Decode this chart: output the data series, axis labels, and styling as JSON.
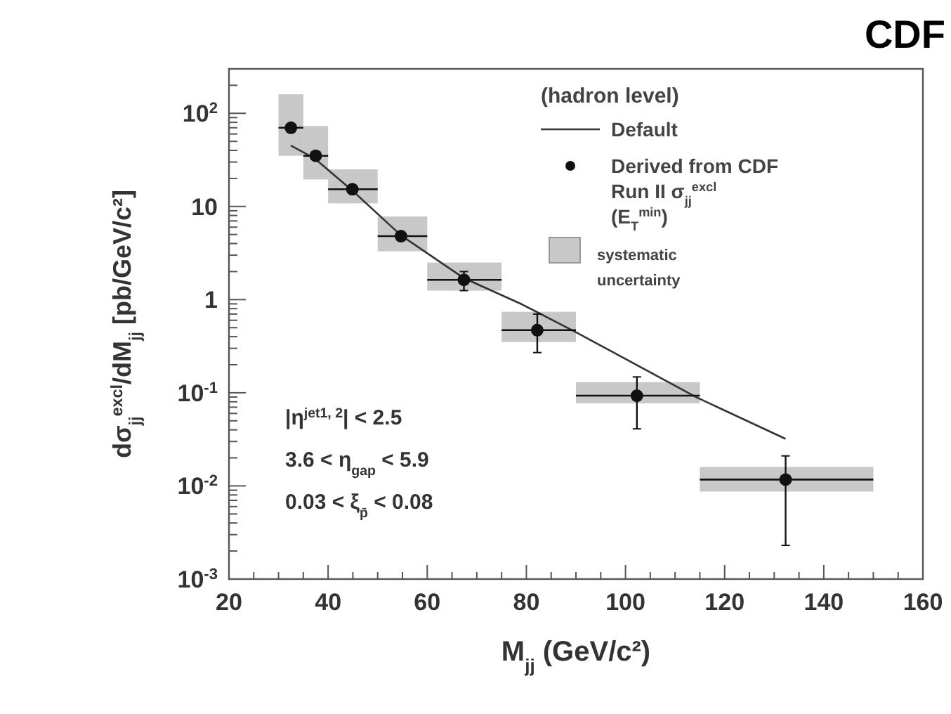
{
  "chart_data": {
    "type": "scatter",
    "title": "CDF",
    "xlabel": "M$_{jj}$ (GeV/c²)",
    "ylabel": "dσ$_{jj}$$^{excl}$/dM$_{jj}$ [pb/GeV/c²]",
    "legend_title": "(hadron level)",
    "annotations": [
      "|η$^{jet1, 2}$| < 2.5",
      "3.6 < η$_{gap}$ < 5.9",
      "0.03 < ξ$_{p̄}$ < 0.08"
    ],
    "log": "y",
    "grid": false,
    "legend": "top right",
    "xlim": [
      20,
      160
    ],
    "ylim": [
      0.001,
      300
    ],
    "xticks": [
      20,
      {
        "value": 25,
        "label": null
      },
      {
        "value": 30,
        "label": null
      },
      {
        "value": 35,
        "label": null
      },
      40,
      {
        "value": 45,
        "label": null
      },
      {
        "value": 50,
        "label": null
      },
      {
        "value": 55,
        "label": null
      },
      60,
      {
        "value": 65,
        "label": null
      },
      {
        "value": 70,
        "label": null
      },
      {
        "value": 75,
        "label": null
      },
      80,
      {
        "value": 85,
        "label": null
      },
      {
        "value": 90,
        "label": null
      },
      {
        "value": 95,
        "label": null
      },
      100,
      {
        "value": 105,
        "label": null
      },
      {
        "value": 110,
        "label": null
      },
      {
        "value": 115,
        "label": null
      },
      120,
      {
        "value": 125,
        "label": null
      },
      {
        "value": 130,
        "label": null
      },
      {
        "value": 135,
        "label": null
      },
      140,
      {
        "value": 145,
        "label": null
      },
      {
        "value": 150,
        "label": null
      },
      {
        "value": 155,
        "label": null
      },
      160
    ],
    "yticks": [
      {
        "value": 0.001,
        "label": "10$^{-3}$"
      },
      {
        "value": 0.002,
        "label": null
      },
      {
        "value": 0.003,
        "label": null
      },
      {
        "value": 0.004,
        "label": null
      },
      {
        "value": 0.005,
        "label": null
      },
      {
        "value": 0.006,
        "label": null
      },
      {
        "value": 0.007,
        "label": null
      },
      {
        "value": 0.008,
        "label": null
      },
      {
        "value": 0.009,
        "label": null
      },
      {
        "value": 0.01,
        "label": "10$^{-2}$"
      },
      {
        "value": 0.02,
        "label": null
      },
      {
        "value": 0.03,
        "label": null
      },
      {
        "value": 0.04,
        "label": null
      },
      {
        "value": 0.05,
        "label": null
      },
      {
        "value": 0.06,
        "label": null
      },
      {
        "value": 0.07,
        "label": null
      },
      {
        "value": 0.08,
        "label": null
      },
      {
        "value": 0.09,
        "label": null
      },
      {
        "value": 0.1,
        "label": "10$^{-1}$"
      },
      {
        "value": 0.2,
        "label": null
      },
      {
        "value": 0.3,
        "label": null
      },
      {
        "value": 0.4,
        "label": null
      },
      {
        "value": 0.5,
        "label": null
      },
      {
        "value": 0.6,
        "label": null
      },
      {
        "value": 0.7,
        "label": null
      },
      {
        "value": 0.8,
        "label": null
      },
      {
        "value": 0.9,
        "label": null
      },
      1,
      {
        "value": 2,
        "label": null
      },
      {
        "value": 3,
        "label": null
      },
      {
        "value": 4,
        "label": null
      },
      {
        "value": 5,
        "label": null
      },
      {
        "value": 6,
        "label": null
      },
      {
        "value": 7,
        "label": null
      },
      {
        "value": 8,
        "label": null
      },
      {
        "value": 9,
        "label": null
      },
      10,
      {
        "value": 20,
        "label": null
      },
      {
        "value": 30,
        "label": null
      },
      {
        "value": 40,
        "label": null
      },
      {
        "value": 50,
        "label": null
      },
      {
        "value": 60,
        "label": null
      },
      {
        "value": 70,
        "label": null
      },
      {
        "value": 80,
        "label": null
      },
      {
        "value": 90,
        "label": null
      },
      {
        "value": 100,
        "label": "10$^{2}$"
      },
      {
        "value": 200,
        "label": null
      },
      {
        "value": 300,
        "label": null
      }
    ],
    "series": [
      {
        "name": "Default",
        "type": "line",
        "color": "#333333",
        "line_style": "solid",
        "marker": "none",
        "x": [
          32.5,
          37.2,
          44.9,
          54.7,
          67.4,
          79.1,
          89.9,
          114.4,
          132.3
        ],
        "values": [
          45,
          33,
          14.8,
          4.9,
          1.7,
          0.89,
          0.45,
          0.089,
          0.032
        ]
      },
      {
        "name": "Derived from CDF Run II σ$_{jj}$$^{excl}$ (E$_{T}$$^{min}$)",
        "color": "#111111",
        "marker": "circle",
        "x": [
          32.5,
          37.5,
          44.9,
          54.7,
          67.4,
          82.2,
          102.3,
          132.3
        ],
        "values": [
          70,
          35,
          15.3,
          4.8,
          1.63,
          0.47,
          0.093,
          0.0117
        ],
        "xerrors": [
          [
            30,
            35
          ],
          [
            35,
            40
          ],
          [
            40,
            50
          ],
          [
            50,
            60
          ],
          [
            60,
            75
          ],
          [
            75,
            90
          ],
          [
            90,
            115
          ],
          [
            115,
            150
          ]
        ],
        "errors": [
          null,
          null,
          null,
          null,
          [
            1.25,
            2.0
          ],
          [
            0.27,
            0.7
          ],
          [
            0.041,
            0.148
          ],
          [
            0.0023,
            0.021
          ]
        ]
      },
      {
        "name": "systematic uncertainty",
        "type": "bar",
        "color": "#c8c8c8",
        "x": [
          32.5,
          37.5,
          44.9,
          54.7,
          67.4,
          82.2,
          102.3,
          132.3
        ],
        "base": [
          35,
          19.5,
          10.8,
          3.3,
          1.25,
          0.35,
          0.077,
          0.0087
        ],
        "values": [
          125,
          53.5,
          14.2,
          4.5,
          1.25,
          0.39,
          0.053,
          0.0073
        ]
      }
    ]
  }
}
